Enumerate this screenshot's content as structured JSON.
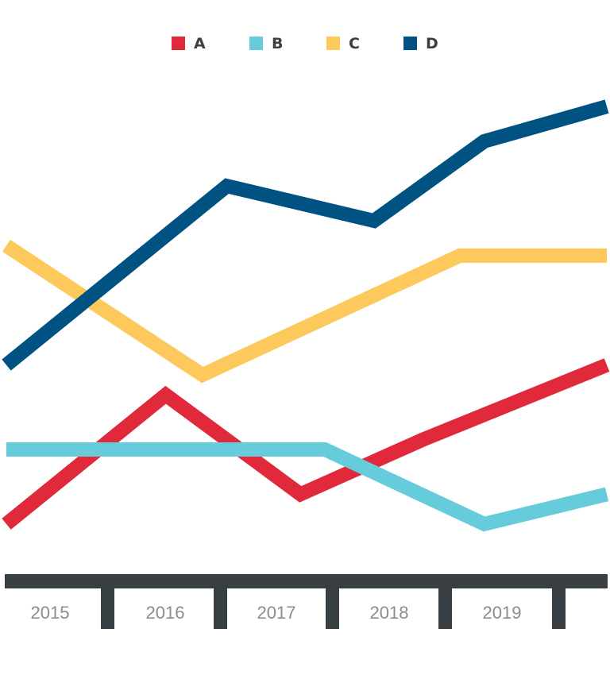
{
  "chart_data": {
    "type": "line",
    "title": "",
    "xlabel": "",
    "ylabel": "",
    "categories": [
      "2015",
      "2016",
      "2017",
      "2018",
      "2019"
    ],
    "grid": false,
    "legend_position": "top-center",
    "ylim": [
      0,
      100
    ],
    "series": [
      {
        "name": "A",
        "color": "#e02a3c",
        "points": [
          [
            2015.0,
            8
          ],
          [
            2016.3,
            34
          ],
          [
            2017.4,
            14
          ],
          [
            2018.4,
            25
          ],
          [
            2019.9,
            40
          ]
        ]
      },
      {
        "name": "B",
        "color": "#66ccdb",
        "points": [
          [
            2015.0,
            23
          ],
          [
            2016.3,
            23
          ],
          [
            2017.6,
            23
          ],
          [
            2018.9,
            8
          ],
          [
            2019.9,
            14
          ]
        ]
      },
      {
        "name": "C",
        "color": "#fdc95c",
        "points": [
          [
            2015.0,
            64
          ],
          [
            2016.6,
            38
          ],
          [
            2018.7,
            62
          ],
          [
            2019.9,
            62
          ]
        ]
      },
      {
        "name": "D",
        "color": "#005282",
        "points": [
          [
            2015.0,
            40
          ],
          [
            2016.8,
            76
          ],
          [
            2018.0,
            69
          ],
          [
            2018.9,
            85
          ],
          [
            2019.9,
            92
          ]
        ]
      }
    ]
  }
}
